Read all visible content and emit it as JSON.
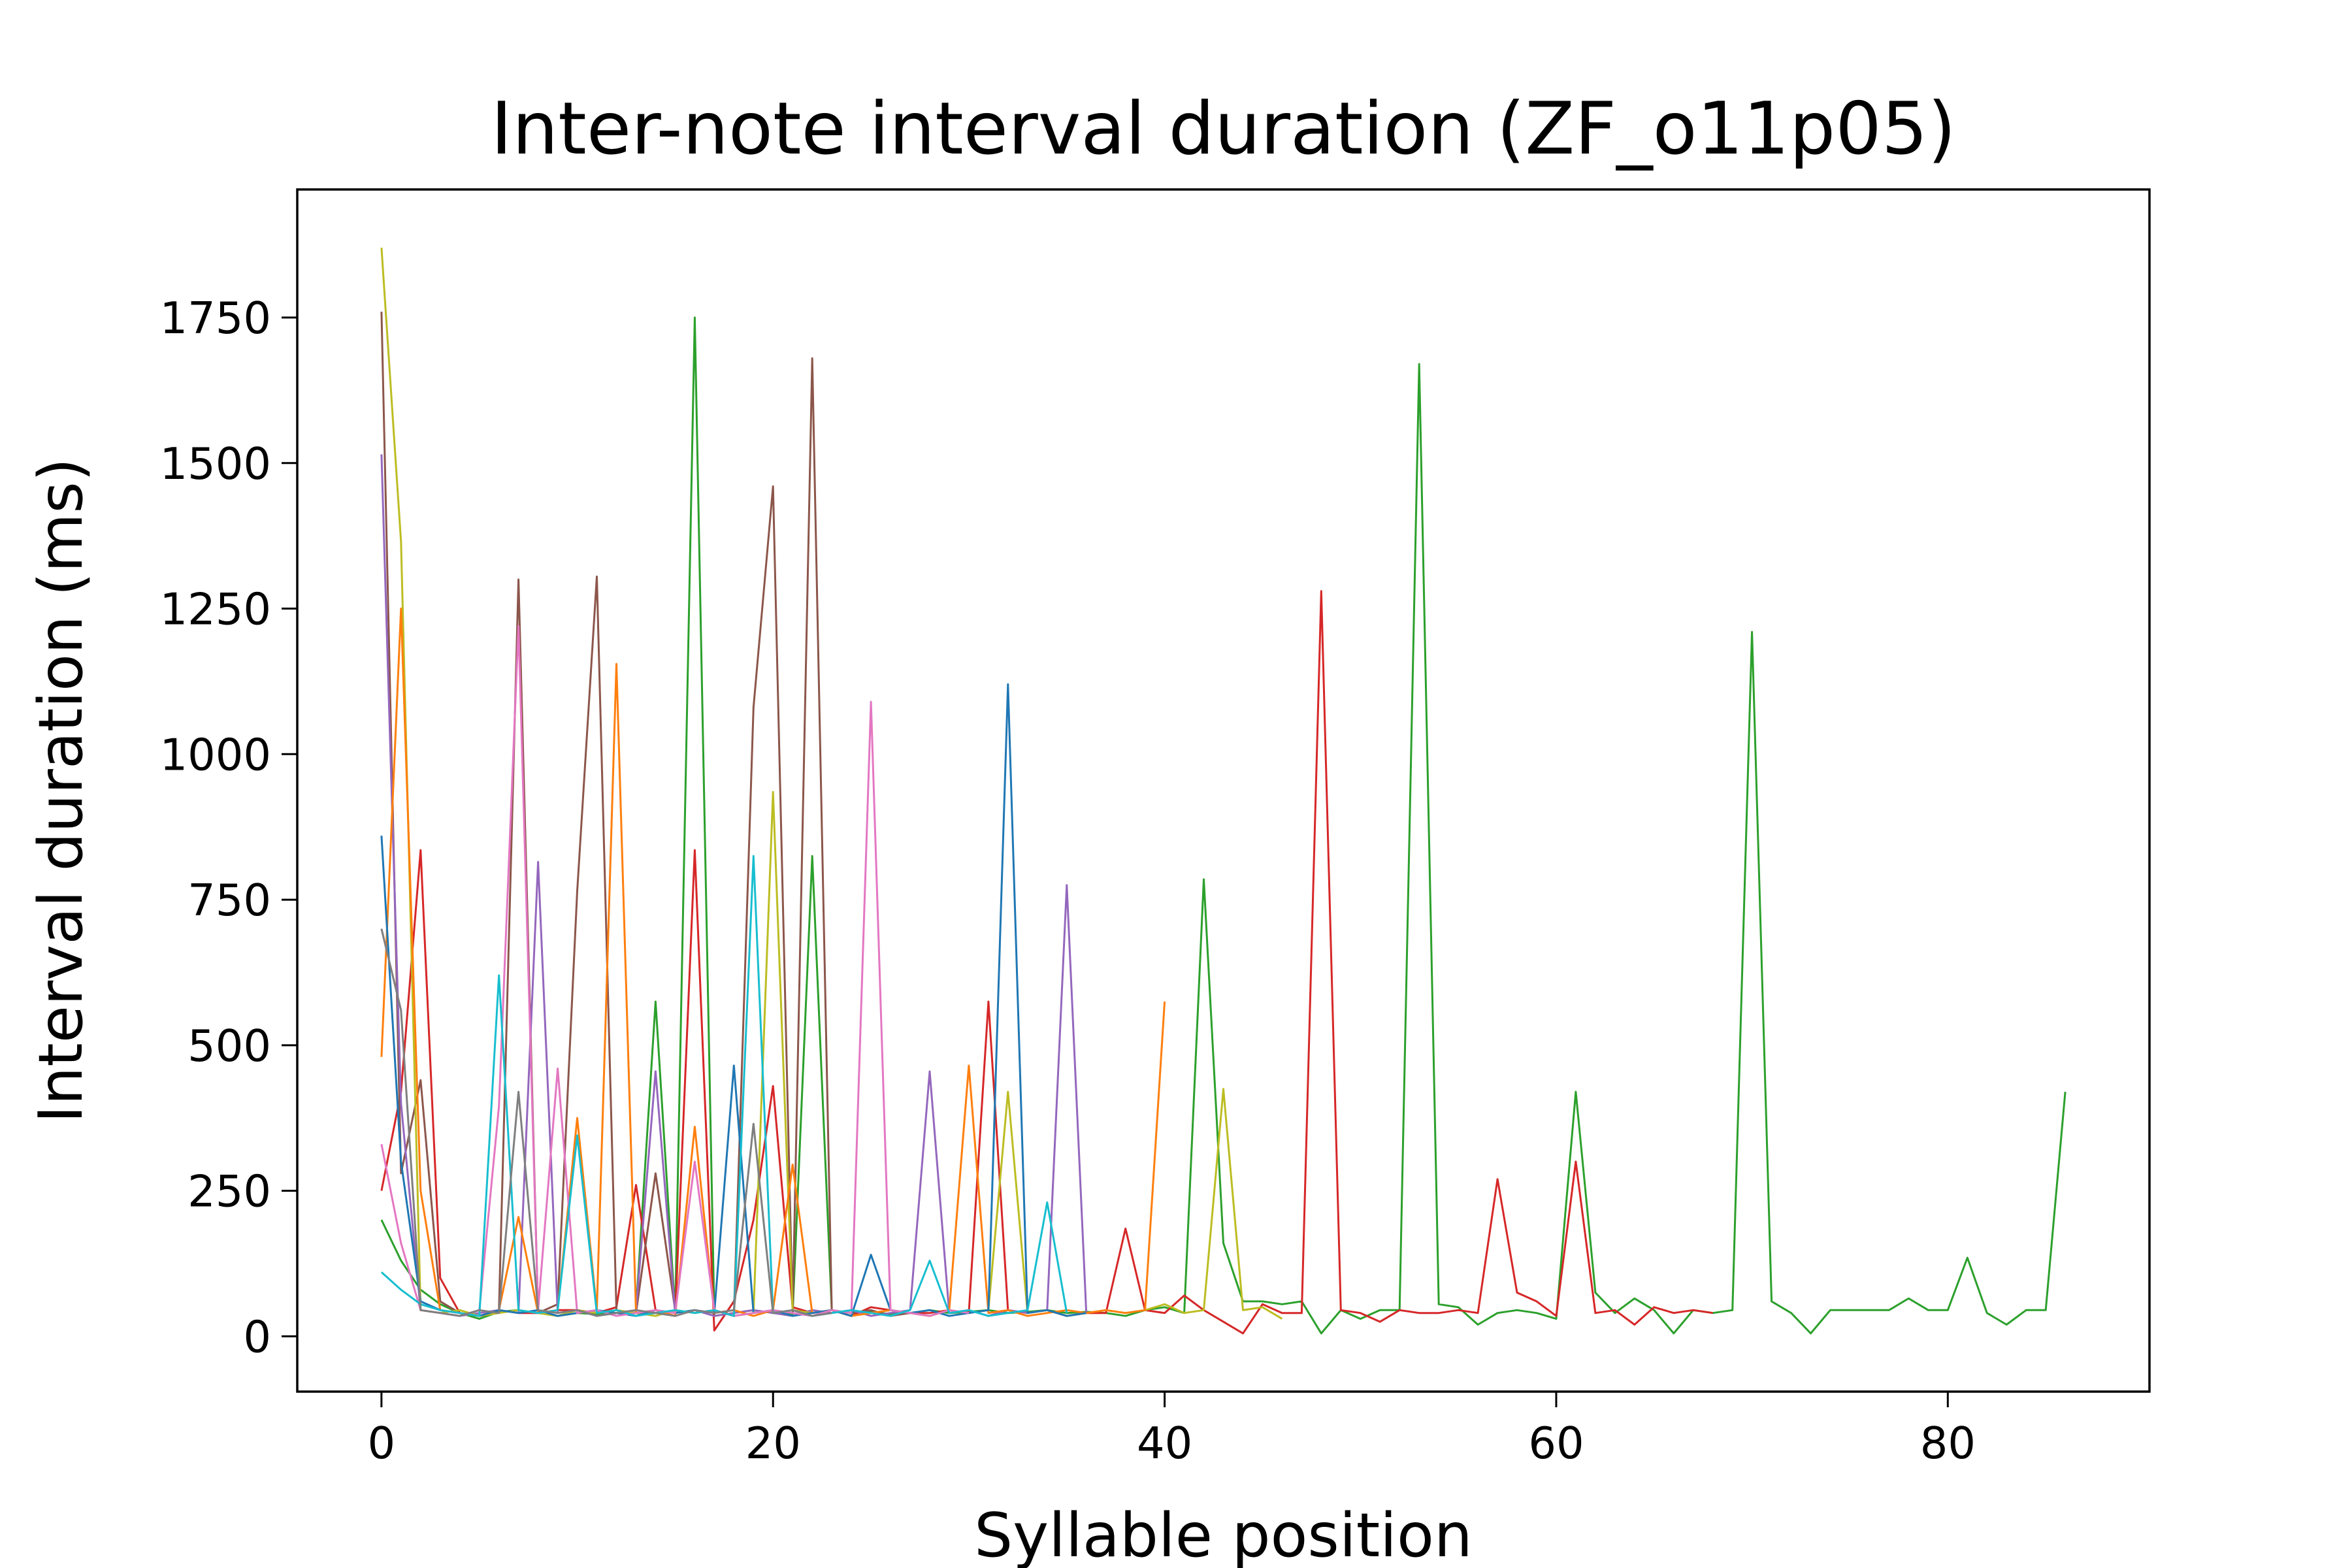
{
  "chart_data": {
    "type": "line",
    "title": "Inter-note interval duration (ZF_o11p05)",
    "xlabel": "Syllable position",
    "ylabel": "Interval duration (ms)",
    "xlim": [
      -4.3,
      90.3
    ],
    "ylim": [
      -95,
      1970
    ],
    "xticks": [
      0,
      20,
      40,
      60,
      80
    ],
    "yticks": [
      0,
      250,
      500,
      750,
      1000,
      1250,
      1500,
      1750
    ],
    "xtick_labels": [
      "0",
      "20",
      "40",
      "60",
      "80"
    ],
    "ytick_labels": [
      "0",
      "250",
      "500",
      "750",
      "1000",
      "1250",
      "1500",
      "1750"
    ],
    "grid": false,
    "legend": "none",
    "series": [
      {
        "color": "#2ca02c",
        "values": [
          200,
          130,
          80,
          55,
          40,
          30,
          42,
          45,
          40,
          35,
          40,
          38,
          40,
          45,
          575,
          40,
          1750,
          35,
          40,
          45,
          40,
          38,
          825,
          45,
          40,
          42,
          38,
          40,
          45,
          40,
          42,
          45,
          40,
          42,
          45,
          40,
          42,
          40,
          35,
          45,
          50,
          40,
          785,
          160,
          60,
          60,
          55,
          60,
          5,
          45,
          30,
          45,
          45,
          1670,
          55,
          50,
          20,
          40,
          45,
          40,
          30,
          420,
          75,
          40,
          65,
          45,
          5,
          45,
          40,
          45,
          1210,
          60,
          40,
          5,
          45,
          45,
          45,
          45,
          65,
          45,
          45,
          135,
          40,
          20,
          45,
          45,
          420
        ]
      },
      {
        "color": "#d62728",
        "values": [
          250,
          420,
          835,
          100,
          40,
          35,
          45,
          40,
          40,
          45,
          45,
          40,
          50,
          260,
          45,
          35,
          835,
          10,
          60,
          200,
          430,
          50,
          40,
          45,
          35,
          50,
          45,
          40,
          40,
          45,
          40,
          575,
          45,
          40,
          45,
          35,
          40,
          40,
          185,
          45,
          40,
          70,
          45,
          25,
          5,
          55,
          40,
          40,
          1280,
          45,
          40,
          25,
          45,
          40,
          40,
          45,
          40,
          270,
          75,
          60,
          35,
          300,
          40,
          45,
          20,
          50,
          40,
          45,
          40
        ]
      },
      {
        "color": "#8c564b",
        "values": [
          1760,
          280,
          440,
          60,
          40,
          35,
          45,
          1300,
          40,
          55,
          765,
          1305,
          45,
          40,
          280,
          45,
          40,
          45,
          35,
          1080,
          1460,
          40,
          1680,
          45,
          40,
          45,
          35,
          40
        ]
      },
      {
        "color": "#9467bd",
        "values": [
          1515,
          400,
          45,
          40,
          35,
          40,
          45,
          40,
          815,
          40,
          45,
          35,
          40,
          45,
          455,
          40,
          45,
          35,
          40,
          45,
          40,
          35,
          45,
          40,
          45,
          35,
          40,
          45,
          455,
          40,
          45,
          35,
          45,
          40,
          45,
          775,
          40
        ]
      },
      {
        "color": "#bcbd22",
        "values": [
          1870,
          1365,
          45,
          40,
          45,
          35,
          40,
          45,
          40,
          35,
          45,
          40,
          45,
          40,
          35,
          45,
          40,
          45,
          35,
          40,
          935,
          45,
          40,
          45,
          35,
          40,
          45,
          40,
          35,
          45,
          40,
          45,
          420,
          40,
          45,
          35,
          40,
          45,
          40,
          45,
          55,
          40,
          45,
          425,
          45,
          50,
          30
        ]
      },
      {
        "color": "#ff7f0e",
        "values": [
          480,
          1250,
          250,
          45,
          40,
          35,
          45,
          205,
          40,
          45,
          375,
          45,
          1155,
          40,
          45,
          35,
          360,
          40,
          45,
          35,
          45,
          295,
          40,
          45,
          35,
          40,
          45,
          40,
          35,
          45,
          465,
          40,
          45,
          35,
          40,
          45,
          40,
          45,
          40,
          45,
          575
        ]
      },
      {
        "color": "#1f77b4",
        "values": [
          860,
          300,
          60,
          45,
          40,
          35,
          45,
          40,
          45,
          35,
          40,
          45,
          40,
          35,
          45,
          40,
          45,
          40,
          465,
          40,
          45,
          35,
          40,
          45,
          35,
          140,
          45,
          40,
          45,
          35,
          40,
          45,
          1120,
          40,
          45,
          35,
          40
        ]
      },
      {
        "color": "#e377c2",
        "values": [
          330,
          160,
          45,
          40,
          35,
          45,
          395,
          1220,
          45,
          460,
          40,
          45,
          35,
          40,
          45,
          40,
          300,
          45,
          35,
          40,
          45,
          40,
          35,
          45,
          40,
          1090,
          45,
          40,
          35,
          45,
          40
        ]
      },
      {
        "color": "#17becf",
        "values": [
          110,
          80,
          55,
          45,
          40,
          35,
          620,
          45,
          40,
          45,
          345,
          40,
          45,
          35,
          40,
          45,
          40,
          45,
          35,
          825,
          40,
          45,
          35,
          40,
          45,
          40,
          35,
          45,
          130,
          40,
          45,
          35,
          40,
          45,
          230,
          40
        ]
      },
      {
        "color": "#7f7f7f",
        "values": [
          700,
          560,
          45,
          40,
          35,
          45,
          40,
          420,
          45,
          40,
          45,
          35,
          40,
          45,
          40,
          35,
          45,
          40,
          45,
          365,
          40,
          45,
          35,
          40
        ]
      }
    ]
  }
}
